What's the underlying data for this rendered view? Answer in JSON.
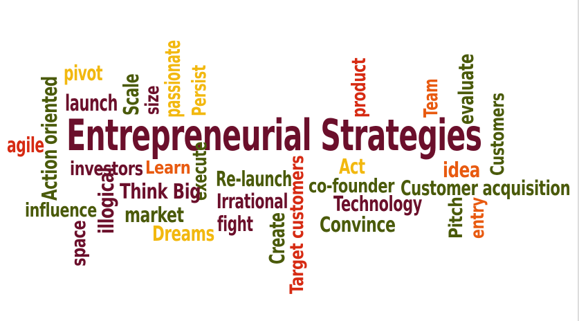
{
  "colors": {
    "maroon": "#6b0f2b",
    "olive": "#4a5a0a",
    "orange": "#e85a10",
    "yellow": "#f2b80f",
    "red": "#d62a12"
  },
  "words": [
    {
      "id": "entrepreneurial-strategies",
      "text": "Entrepreneurial Strategies",
      "color": "maroon",
      "vertical": false
    },
    {
      "id": "agile",
      "text": "agile",
      "color": "red",
      "vertical": false
    },
    {
      "id": "action-oriented",
      "text": "Action oriented",
      "color": "olive",
      "vertical": true
    },
    {
      "id": "pivot",
      "text": "pivot",
      "color": "yellow",
      "vertical": false
    },
    {
      "id": "launch",
      "text": "launch",
      "color": "maroon",
      "vertical": false
    },
    {
      "id": "scale",
      "text": "Scale",
      "color": "olive",
      "vertical": true
    },
    {
      "id": "size",
      "text": "size",
      "color": "maroon",
      "vertical": true
    },
    {
      "id": "passionate",
      "text": "passionate",
      "color": "yellow",
      "vertical": true
    },
    {
      "id": "persist",
      "text": "Persist",
      "color": "yellow",
      "vertical": true
    },
    {
      "id": "investors",
      "text": "investors",
      "color": "maroon",
      "vertical": false
    },
    {
      "id": "learn",
      "text": "Learn",
      "color": "orange",
      "vertical": false
    },
    {
      "id": "execute",
      "text": "execute",
      "color": "olive",
      "vertical": true
    },
    {
      "id": "illogical",
      "text": "illogical",
      "color": "maroon",
      "vertical": true
    },
    {
      "id": "think-big",
      "text": "Think Big",
      "color": "maroon",
      "vertical": false
    },
    {
      "id": "influence",
      "text": "influence",
      "color": "olive",
      "vertical": false
    },
    {
      "id": "market",
      "text": "market",
      "color": "olive",
      "vertical": false
    },
    {
      "id": "space",
      "text": "space",
      "color": "maroon",
      "vertical": true
    },
    {
      "id": "dreams",
      "text": "Dreams",
      "color": "yellow",
      "vertical": false
    },
    {
      "id": "re-launch",
      "text": "Re-launch",
      "color": "olive",
      "vertical": false
    },
    {
      "id": "irrational",
      "text": "Irrational",
      "color": "maroon",
      "vertical": false
    },
    {
      "id": "fight",
      "text": "fight",
      "color": "maroon",
      "vertical": false
    },
    {
      "id": "create",
      "text": "Create",
      "color": "olive",
      "vertical": true
    },
    {
      "id": "target-customers",
      "text": "Target customers",
      "color": "red",
      "vertical": true
    },
    {
      "id": "product",
      "text": "product",
      "color": "red",
      "vertical": true
    },
    {
      "id": "act",
      "text": "Act",
      "color": "yellow",
      "vertical": false
    },
    {
      "id": "co-founder",
      "text": "co-founder",
      "color": "olive",
      "vertical": false
    },
    {
      "id": "technology",
      "text": "Technology",
      "color": "maroon",
      "vertical": false
    },
    {
      "id": "convince",
      "text": "Convince",
      "color": "olive",
      "vertical": false
    },
    {
      "id": "team",
      "text": "Team",
      "color": "orange",
      "vertical": true
    },
    {
      "id": "evaluate",
      "text": "evaluate",
      "color": "olive",
      "vertical": true
    },
    {
      "id": "customers",
      "text": "Customers",
      "color": "olive",
      "vertical": true
    },
    {
      "id": "idea",
      "text": "idea",
      "color": "orange",
      "vertical": false
    },
    {
      "id": "customer-acquisition",
      "text": "Customer acquisition",
      "color": "olive",
      "vertical": false
    },
    {
      "id": "pitch",
      "text": "Pitch",
      "color": "olive",
      "vertical": true
    },
    {
      "id": "entry",
      "text": "entry",
      "color": "orange",
      "vertical": true
    }
  ]
}
